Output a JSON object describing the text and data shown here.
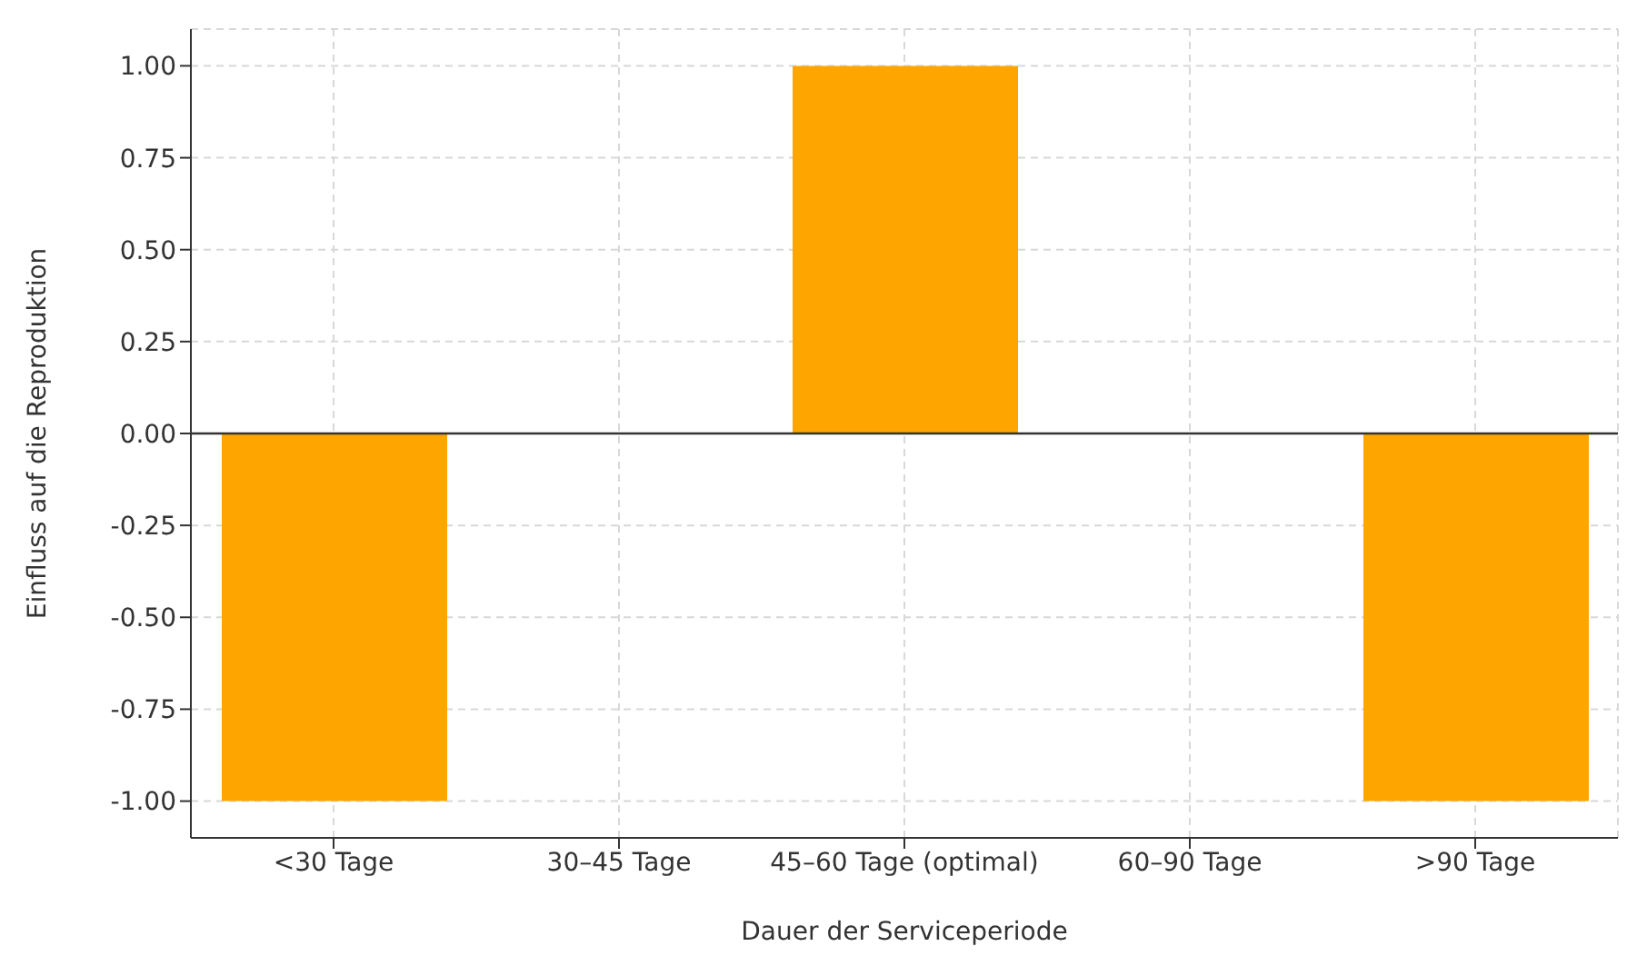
{
  "chart_data": {
    "type": "bar",
    "xlabel": "Dauer der Serviceperiode",
    "ylabel": "Einfluss auf die Reproduktion",
    "categories": [
      "<30 Tage",
      "30–45 Tage",
      "45–60 Tage (optimal)",
      "60–90 Tage",
      ">90 Tage"
    ],
    "values": [
      -1,
      0,
      1,
      0,
      -1
    ],
    "color": "#ffa500",
    "ylim": [
      -1.1,
      1.1
    ],
    "yticks": [
      {
        "value": -1,
        "label": "-1.00"
      },
      {
        "value": -0.75,
        "label": "-0.75"
      },
      {
        "value": -0.5,
        "label": "-0.50"
      },
      {
        "value": -0.25,
        "label": "-0.25"
      },
      {
        "value": 0,
        "label": "0.00"
      },
      {
        "value": 0.25,
        "label": "0.25"
      },
      {
        "value": 0.5,
        "label": "0.50"
      },
      {
        "value": 0.75,
        "label": "0.75"
      },
      {
        "value": 1,
        "label": "1.00"
      }
    ],
    "grid": true,
    "ref_lines": [
      {
        "axis": "y",
        "value": 0,
        "color": "#333333"
      }
    ]
  }
}
